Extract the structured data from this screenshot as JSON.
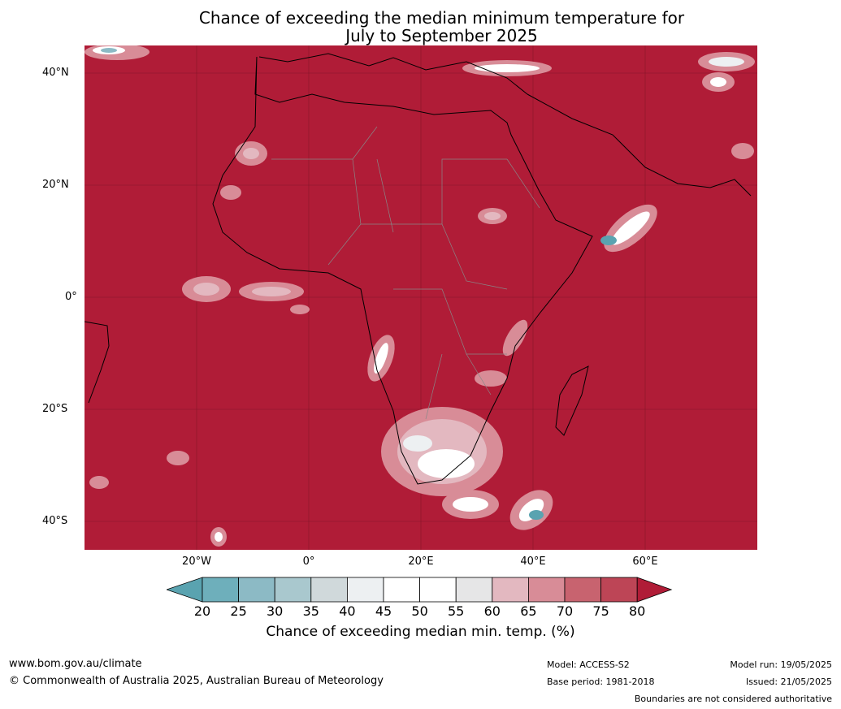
{
  "title": {
    "line1": "Chance of exceeding the median minimum temperature for",
    "line2": "July to September 2025"
  },
  "map": {
    "lat_labels": [
      "40°N",
      "20°N",
      "0°",
      "20°S",
      "40°S"
    ],
    "lon_labels": [
      "20°W",
      "0°",
      "20°E",
      "40°E",
      "60°E"
    ],
    "background_category_color": "#b01c37"
  },
  "colorbar": {
    "title": "Chance of exceeding median min. temp. (%)",
    "ticks": [
      "20",
      "25",
      "30",
      "35",
      "40",
      "45",
      "50",
      "55",
      "60",
      "65",
      "70",
      "75",
      "80"
    ],
    "colors": [
      "#5aa3b0",
      "#6eafbb",
      "#8cbac5",
      "#a9c8ce",
      "#d0d9db",
      "#edf0f2",
      "#ffffff",
      "#ffffff",
      "#e6e6e7",
      "#e3b8c0",
      "#d88c97",
      "#c8636f",
      "#bd4556",
      "#b01c37"
    ]
  },
  "footer": {
    "website": "www.bom.gov.au/climate",
    "copyright": "© Commonwealth of Australia 2025, Australian Bureau of Meteorology",
    "model": "Model: ACCESS-S2",
    "base_period": "Base period: 1981-2018",
    "model_run": "Model run: 19/05/2025",
    "issued": "Issued: 21/05/2025",
    "boundaries": "Boundaries are not considered authoritative"
  }
}
